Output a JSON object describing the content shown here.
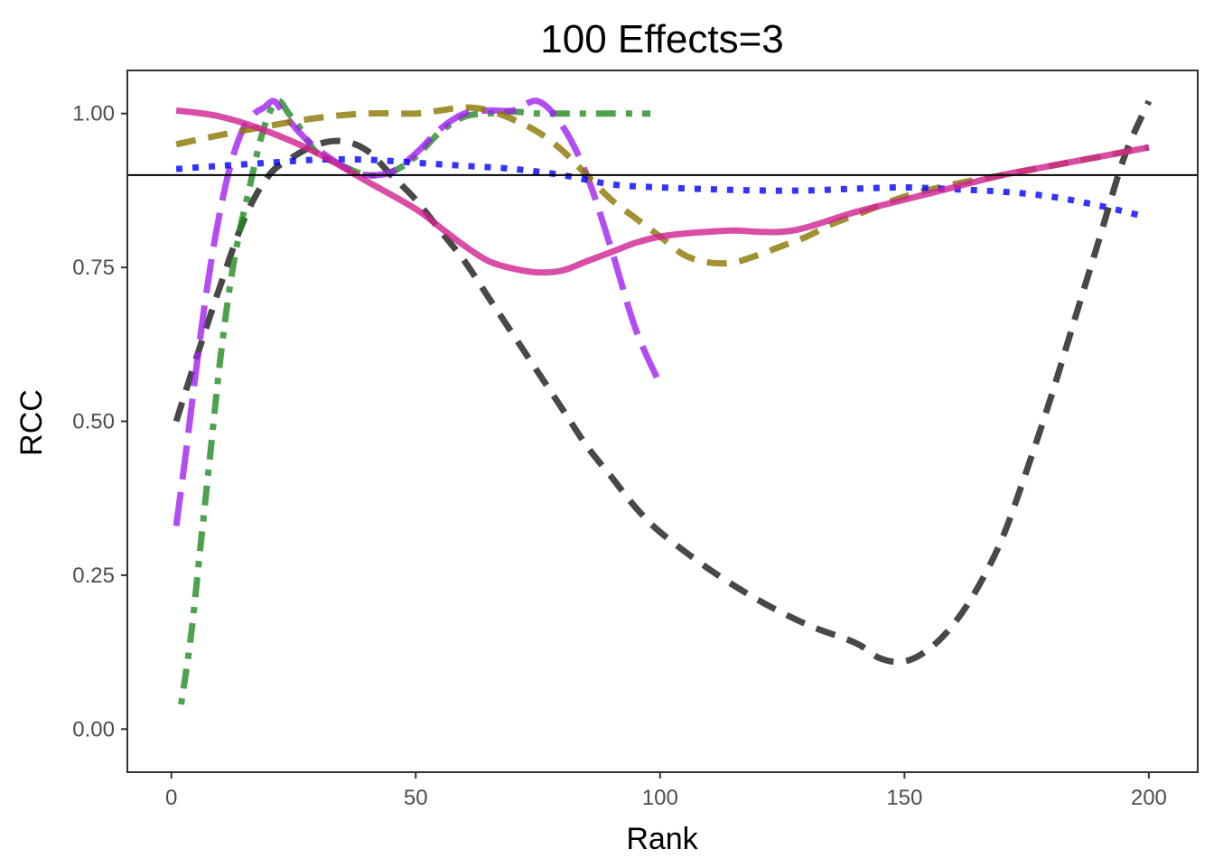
{
  "chart_data": {
    "type": "line",
    "title": "100 Effects=3",
    "xlabel": "Rank",
    "ylabel": "RCC",
    "xlim": [
      -9,
      210
    ],
    "ylim": [
      -0.07,
      1.07
    ],
    "x_ticks": [
      0,
      50,
      100,
      150,
      200
    ],
    "x_tick_labels": [
      "0",
      "50",
      "100",
      "150",
      "200"
    ],
    "y_ticks": [
      0,
      0.25,
      0.5,
      0.75,
      1.0
    ],
    "y_tick_labels": [
      "0.00",
      "0.25",
      "0.50",
      "0.75",
      "1.00"
    ],
    "grid": false,
    "legend": "none",
    "reference_line": {
      "y": 0.9,
      "color": "#000000"
    },
    "series": [
      {
        "name": "black-dashed",
        "color": "#1a1a1a",
        "dash": "dashed",
        "x": [
          1,
          5,
          10,
          15,
          20,
          25,
          30,
          35,
          40,
          45,
          50,
          55,
          60,
          65,
          70,
          75,
          80,
          85,
          90,
          95,
          100,
          110,
          120,
          130,
          140,
          145,
          150,
          155,
          160,
          165,
          170,
          175,
          180,
          185,
          190,
          195,
          200
        ],
        "y": [
          0.5,
          0.6,
          0.72,
          0.83,
          0.9,
          0.93,
          0.95,
          0.955,
          0.94,
          0.9,
          0.86,
          0.81,
          0.76,
          0.7,
          0.64,
          0.58,
          0.52,
          0.46,
          0.41,
          0.36,
          0.32,
          0.26,
          0.21,
          0.17,
          0.14,
          0.115,
          0.11,
          0.13,
          0.17,
          0.23,
          0.31,
          0.42,
          0.54,
          0.67,
          0.8,
          0.93,
          1.02
        ]
      },
      {
        "name": "green-dotdash",
        "color": "#228b22",
        "dash": "dotdash",
        "x": [
          2,
          4,
          6,
          8,
          10,
          12,
          14,
          16,
          18,
          20,
          22,
          24,
          26,
          28,
          30,
          35,
          40,
          45,
          50,
          55,
          60,
          65,
          70,
          75,
          80,
          85,
          90,
          95,
          98
        ],
        "y": [
          0.04,
          0.15,
          0.3,
          0.45,
          0.6,
          0.72,
          0.81,
          0.88,
          0.95,
          1.0,
          1.02,
          1.0,
          0.98,
          0.955,
          0.935,
          0.915,
          0.9,
          0.905,
          0.93,
          0.97,
          0.995,
          1.0,
          1.003,
          1.0,
          1.0,
          1.0,
          1.0,
          1.0,
          1.0
        ]
      },
      {
        "name": "purple-longdash",
        "color": "#a020f0",
        "dash": "longdash",
        "x": [
          1,
          3,
          5,
          7,
          9,
          11,
          13,
          15,
          17,
          19,
          21,
          23,
          25,
          28,
          32,
          36,
          40,
          45,
          50,
          55,
          60,
          65,
          70,
          75,
          80,
          85,
          90,
          95,
          100
        ],
        "y": [
          0.33,
          0.45,
          0.58,
          0.7,
          0.8,
          0.88,
          0.94,
          0.98,
          1.0,
          1.01,
          1.02,
          1.0,
          0.98,
          0.955,
          0.93,
          0.91,
          0.9,
          0.905,
          0.935,
          0.975,
          1.0,
          1.005,
          1.005,
          1.02,
          0.98,
          0.9,
          0.78,
          0.65,
          0.56
        ]
      },
      {
        "name": "olive-dashed",
        "color": "#8b7500",
        "dash": "dashed",
        "x": [
          1,
          10,
          20,
          30,
          40,
          50,
          55,
          60,
          65,
          70,
          75,
          80,
          85,
          90,
          95,
          100,
          105,
          110,
          115,
          120,
          125,
          130,
          135,
          140,
          150,
          160,
          170,
          180,
          190,
          200
        ],
        "y": [
          0.95,
          0.965,
          0.98,
          0.993,
          1.0,
          1.0,
          1.005,
          1.01,
          1.005,
          0.99,
          0.97,
          0.94,
          0.9,
          0.86,
          0.83,
          0.8,
          0.77,
          0.758,
          0.758,
          0.77,
          0.785,
          0.8,
          0.82,
          0.835,
          0.865,
          0.885,
          0.9,
          0.915,
          0.93,
          0.945
        ]
      },
      {
        "name": "blue-dotted",
        "color": "#0000ff",
        "dash": "dotted",
        "x": [
          1,
          10,
          20,
          30,
          40,
          50,
          60,
          70,
          80,
          90,
          100,
          110,
          120,
          130,
          140,
          150,
          160,
          170,
          180,
          190,
          198
        ],
        "y": [
          0.91,
          0.915,
          0.92,
          0.925,
          0.925,
          0.92,
          0.915,
          0.91,
          0.9,
          0.885,
          0.88,
          0.877,
          0.875,
          0.875,
          0.878,
          0.88,
          0.877,
          0.873,
          0.865,
          0.85,
          0.835
        ]
      },
      {
        "name": "magenta-solid",
        "color": "#d02090",
        "dash": "solid",
        "x": [
          1,
          10,
          20,
          30,
          40,
          50,
          55,
          60,
          65,
          70,
          75,
          80,
          85,
          90,
          95,
          100,
          105,
          110,
          115,
          120,
          125,
          130,
          140,
          150,
          160,
          170,
          180,
          190,
          200
        ],
        "y": [
          1.005,
          0.995,
          0.97,
          0.935,
          0.89,
          0.845,
          0.815,
          0.785,
          0.76,
          0.748,
          0.742,
          0.745,
          0.76,
          0.775,
          0.79,
          0.8,
          0.805,
          0.808,
          0.81,
          0.808,
          0.808,
          0.815,
          0.84,
          0.86,
          0.88,
          0.9,
          0.915,
          0.93,
          0.945
        ]
      }
    ]
  }
}
